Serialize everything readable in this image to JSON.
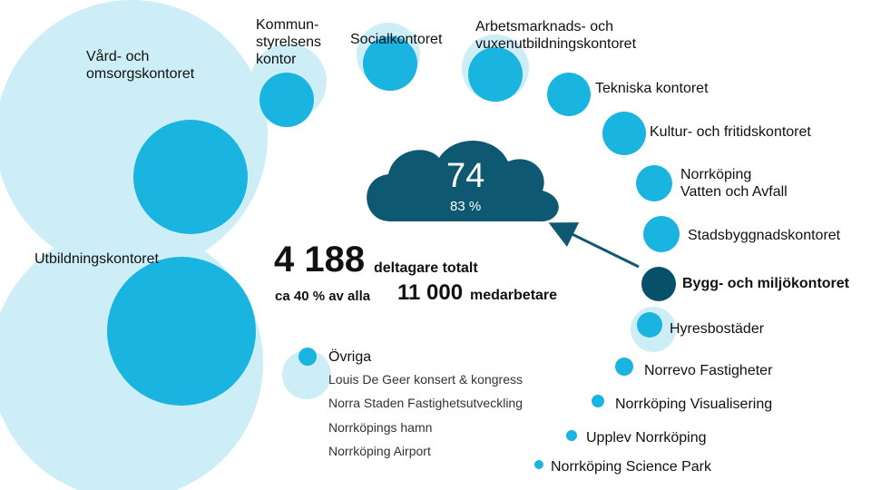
{
  "colors": {
    "light": "#cdeef7",
    "mid": "#1ab4e1",
    "dark": "#0e5872",
    "accent_dark": "#07506a"
  },
  "departments": {
    "vard": "Vård- och\nomsorgskontoret",
    "kommun": "Kommun-\nstyrelsens\nkontor",
    "social": "Socialkontoret",
    "arbets": "Arbetsmarknads- och\nvuxenutbildningskontoret",
    "tekniska": "Tekniska kontoret",
    "kultur": "Kultur- och fritidskontoret",
    "vatten": "Norrköping\nVatten och Avfall",
    "stadsbygg": "Stadsbyggnadskontoret",
    "utbildning": "Utbildningskontoret",
    "bygg": "Bygg- och miljökontoret",
    "hyres": "Hyresbostäder",
    "ovriga": "Övriga",
    "norrevo": "Norrevo Fastigheter",
    "visualisering": "Norrköping Visualisering",
    "upplev": "Upplev Norrköping",
    "science": "Norrköping Science Park"
  },
  "ovriga_list": [
    "Louis De Geer konsert & kongress",
    "Norra Staden Fastighetsutveckling",
    "Norrköpings hamn",
    "Norrköping Airport"
  ],
  "cloud": {
    "number": "74",
    "percent": "83 %"
  },
  "stats": {
    "total": "4 188",
    "total_label": "deltagare totalt",
    "prefix": "ca 40 % av alla",
    "employees": "11 000",
    "employees_label": "medarbetare"
  }
}
